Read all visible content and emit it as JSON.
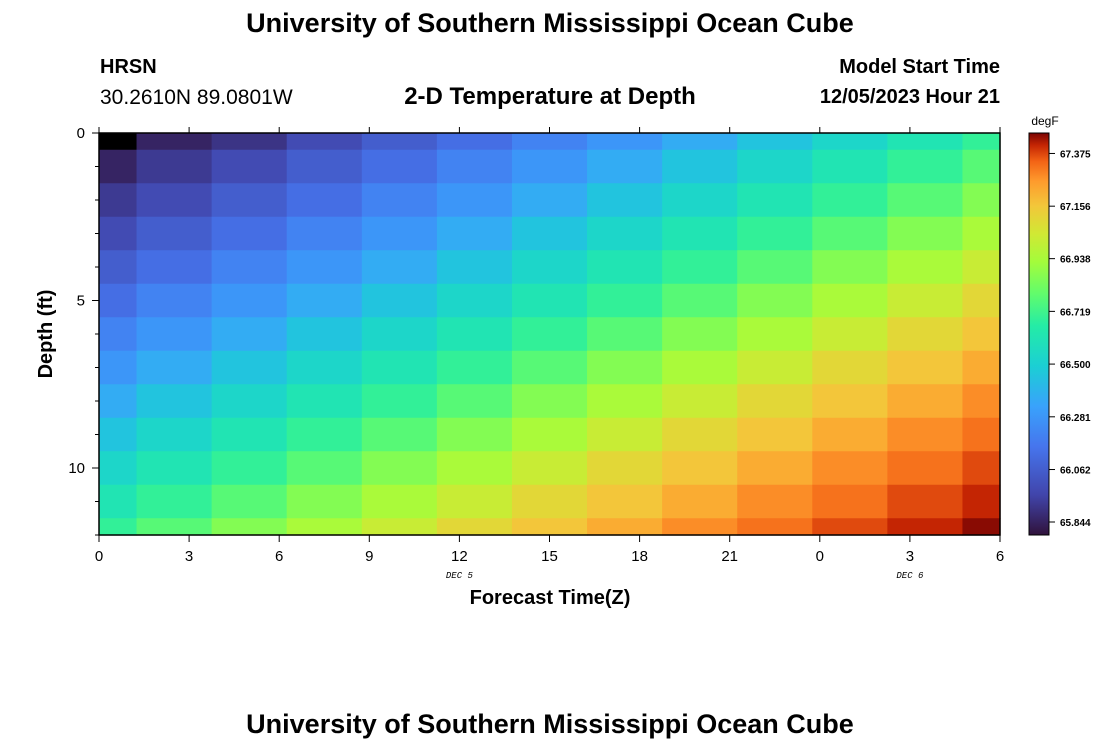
{
  "header": {
    "title": "University of Southern Mississippi Ocean Cube",
    "station": "HRSN",
    "coordinates": "30.2610N  89.0801W",
    "subtitle": "2-D Temperature at Depth",
    "model_start_label": "Model Start Time",
    "model_start_value": "12/05/2023 Hour 21"
  },
  "footer": {
    "title": "University of Southern Mississippi Ocean Cube"
  },
  "chart_data": {
    "type": "heatmap",
    "xlabel": "Forecast Time(Z)",
    "ylabel": "Depth (ft)",
    "x_ticks": [
      "0",
      "3",
      "6",
      "9",
      "12",
      "15",
      "18",
      "21",
      "0",
      "3",
      "6"
    ],
    "x_range_hours": [
      0,
      30
    ],
    "y_ticks": [
      "0",
      "5",
      "10"
    ],
    "y_range": [
      0,
      12
    ],
    "date_labels": [
      {
        "text": "DEC 5",
        "at_hour": 12
      },
      {
        "text": "DEC 6",
        "at_hour": 27
      }
    ],
    "colorbar": {
      "unit": "degF",
      "ticks": [
        "67.375",
        "67.156",
        "66.938",
        "66.719",
        "66.500",
        "66.281",
        "66.062",
        "65.844"
      ],
      "min": 65.79,
      "max": 67.46
    },
    "columns_hours": [
      0,
      2.5,
      5,
      7.5,
      10,
      12.5,
      15,
      17.5,
      20,
      22.5,
      25,
      27.5,
      30
    ],
    "rows_depth_ft": [
      0,
      1,
      2,
      3,
      4,
      5,
      6,
      7,
      8,
      9,
      10,
      11,
      12
    ],
    "values_degF": [
      [
        65.79,
        65.85,
        65.9,
        65.98,
        66.06,
        66.13,
        66.21,
        66.28,
        66.36,
        66.45,
        66.53,
        66.61,
        66.69
      ],
      [
        65.85,
        65.92,
        65.98,
        66.06,
        66.13,
        66.21,
        66.28,
        66.36,
        66.45,
        66.53,
        66.61,
        66.69,
        66.77
      ],
      [
        65.92,
        65.98,
        66.06,
        66.13,
        66.21,
        66.28,
        66.36,
        66.45,
        66.53,
        66.61,
        66.69,
        66.77,
        66.86
      ],
      [
        65.98,
        66.06,
        66.13,
        66.21,
        66.28,
        66.36,
        66.45,
        66.53,
        66.61,
        66.69,
        66.77,
        66.86,
        66.94
      ],
      [
        66.06,
        66.13,
        66.21,
        66.28,
        66.36,
        66.45,
        66.53,
        66.61,
        66.69,
        66.77,
        66.86,
        66.94,
        67.02
      ],
      [
        66.13,
        66.21,
        66.28,
        66.36,
        66.45,
        66.53,
        66.61,
        66.69,
        66.77,
        66.86,
        66.94,
        67.02,
        67.1
      ],
      [
        66.21,
        66.28,
        66.36,
        66.45,
        66.53,
        66.61,
        66.69,
        66.77,
        66.86,
        66.94,
        67.02,
        67.1,
        67.16
      ],
      [
        66.28,
        66.36,
        66.45,
        66.53,
        66.61,
        66.69,
        66.77,
        66.86,
        66.94,
        67.02,
        67.1,
        67.16,
        67.22
      ],
      [
        66.36,
        66.45,
        66.53,
        66.61,
        66.69,
        66.77,
        66.86,
        66.94,
        67.02,
        67.1,
        67.16,
        67.22,
        67.28
      ],
      [
        66.45,
        66.53,
        66.61,
        66.69,
        66.77,
        66.86,
        66.94,
        67.02,
        67.1,
        67.16,
        67.22,
        67.28,
        67.32
      ],
      [
        66.53,
        66.61,
        66.69,
        66.77,
        66.86,
        66.94,
        67.02,
        67.1,
        67.16,
        67.22,
        67.28,
        67.32,
        67.37
      ],
      [
        66.61,
        66.69,
        66.77,
        66.86,
        66.94,
        67.02,
        67.1,
        67.16,
        67.22,
        67.28,
        67.32,
        67.37,
        67.41
      ],
      [
        66.69,
        66.77,
        66.86,
        66.94,
        67.02,
        67.1,
        67.16,
        67.22,
        67.28,
        67.32,
        67.37,
        67.41,
        67.45
      ]
    ]
  }
}
